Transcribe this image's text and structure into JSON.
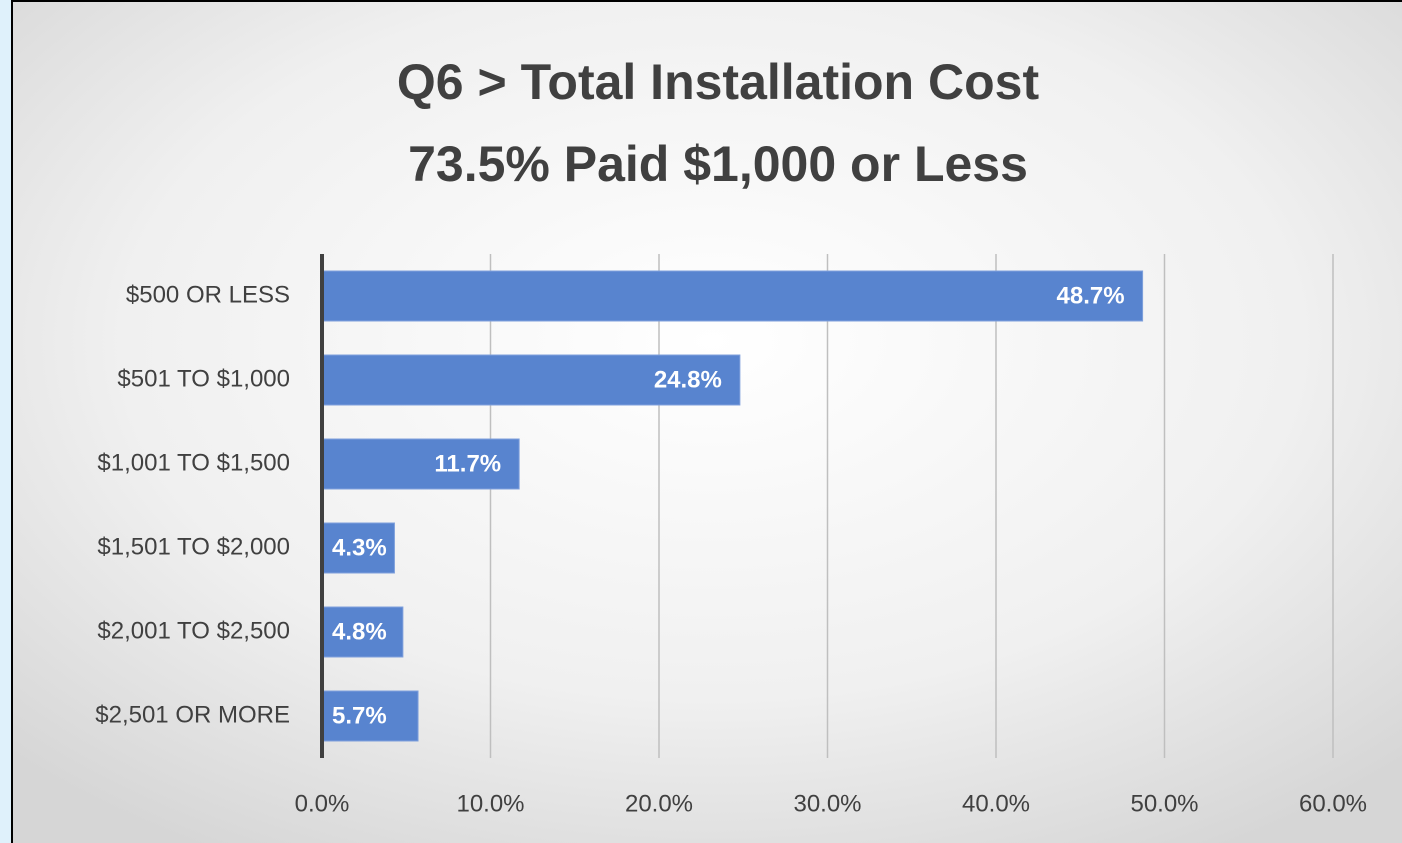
{
  "chart_data": {
    "type": "bar",
    "orientation": "horizontal",
    "title": [
      "Q6 > Total Installation Cost",
      "73.5% Paid $1,000 or Less"
    ],
    "categories": [
      "$500 OR LESS",
      "$501 TO $1,000",
      "$1,001 TO $1,500",
      "$1,501 TO $2,000",
      "$2,001 TO $2,500",
      "$2,501 OR MORE"
    ],
    "values": [
      48.7,
      24.8,
      11.7,
      4.3,
      4.8,
      5.7
    ],
    "value_labels": [
      "48.7%",
      "24.8%",
      "11.7%",
      "4.3%",
      "4.8%",
      "5.7%"
    ],
    "color": "#5884cf",
    "xlim": [
      0,
      60
    ],
    "xticks": [
      {
        "value": 0,
        "label": "0.0%"
      },
      {
        "value": 10,
        "label": "10.0%"
      },
      {
        "value": 20,
        "label": "20.0%"
      },
      {
        "value": 30,
        "label": "30.0%"
      },
      {
        "value": 40,
        "label": "40.0%"
      },
      {
        "value": 50,
        "label": "50.0%"
      },
      {
        "value": 60,
        "label": "60.0%"
      }
    ],
    "grid": true
  }
}
